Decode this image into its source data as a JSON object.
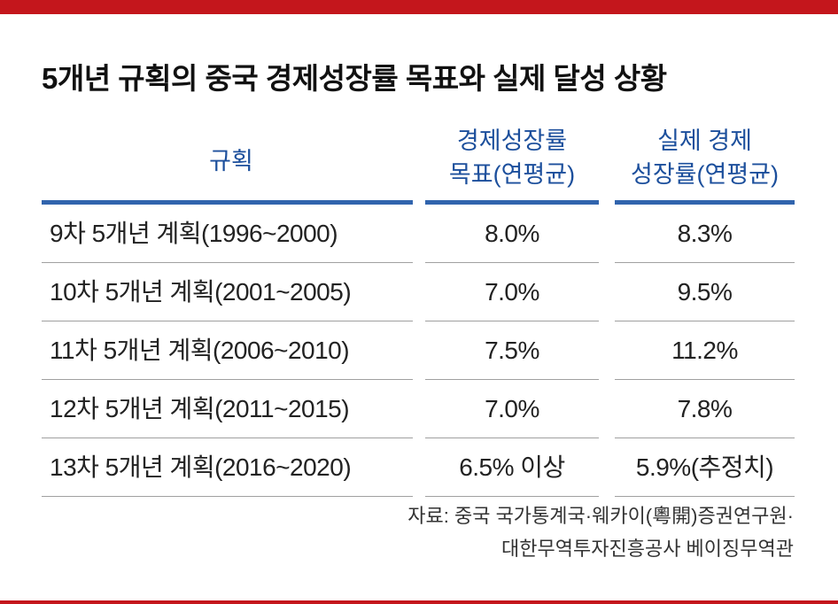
{
  "title": "5개년 규획의 중국 경제성장률 목표와 실제 달성 상황",
  "headers": {
    "col1": "규획",
    "col2_line1": "경제성장률",
    "col2_line2": "목표(연평균)",
    "col3_line1": "실제 경제",
    "col3_line2": "성장률(연평균)"
  },
  "colors": {
    "accent_red": "#c4161c",
    "header_blue": "#1c4f9c",
    "header_rule": "#3164ad"
  },
  "chart_data": {
    "type": "table",
    "columns": [
      "규획",
      "경제성장률 목표(연평균)",
      "실제 경제 성장률(연평균)"
    ],
    "rows": [
      {
        "plan": "9차 5개년 계획(1996~2000)",
        "target": "8.0%",
        "actual": "8.3%"
      },
      {
        "plan": "10차 5개년 계획(2001~2005)",
        "target": "7.0%",
        "actual": "9.5%"
      },
      {
        "plan": "11차 5개년 계획(2006~2010)",
        "target": "7.5%",
        "actual": "11.2%"
      },
      {
        "plan": "12차 5개년 계획(2011~2015)",
        "target": "7.0%",
        "actual": "7.8%"
      },
      {
        "plan": "13차 5개년 계획(2016~2020)",
        "target": "6.5% 이상",
        "actual": "5.9%(추정치)"
      }
    ]
  },
  "source": {
    "line1": "자료: 중국 국가통계국·웨카이(粵開)증권연구원·",
    "line2": "대한무역투자진흥공사 베이징무역관"
  }
}
